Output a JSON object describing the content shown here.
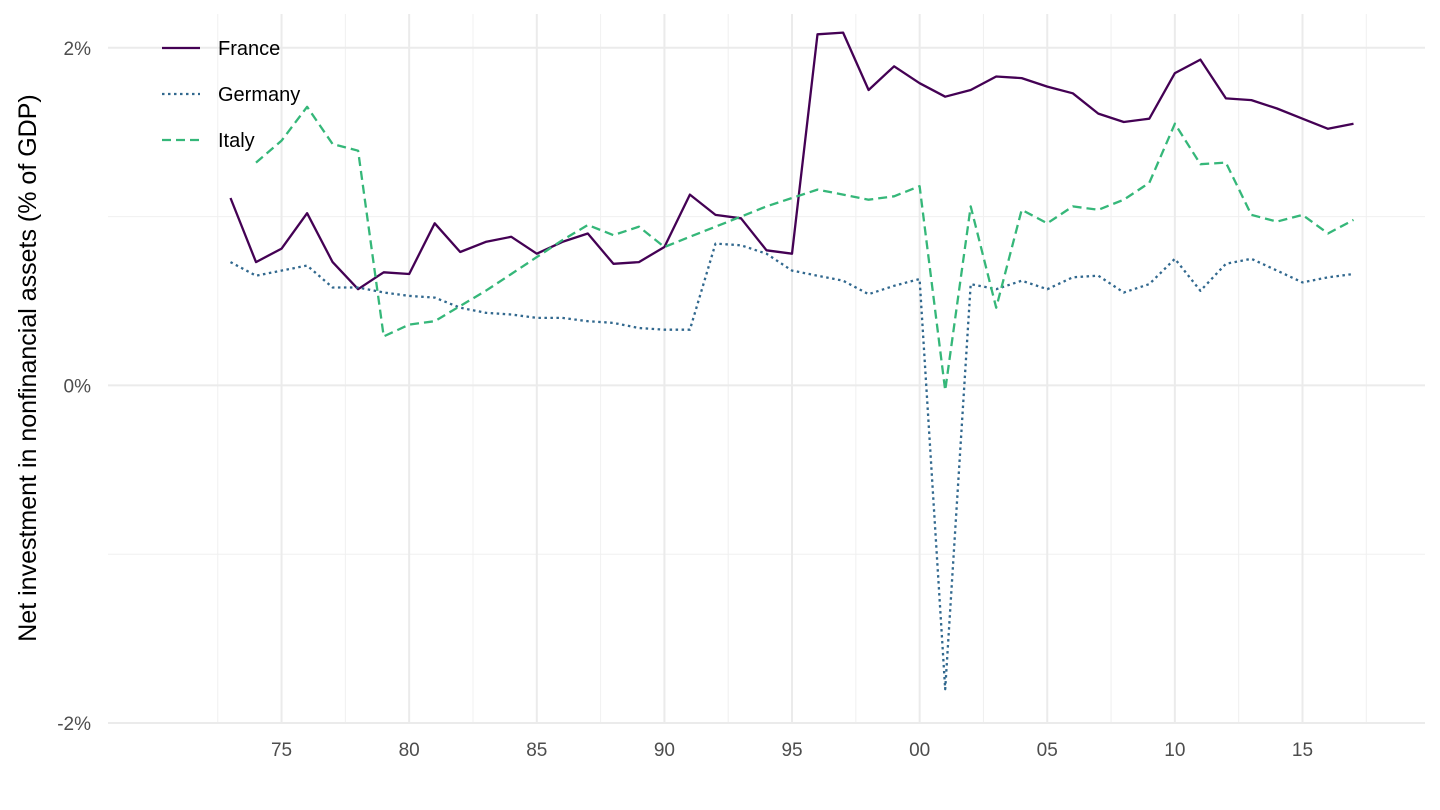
{
  "chart_data": {
    "type": "line",
    "ylabel": "Net investment in nonfinancial assets (% of GDP)",
    "xlabel": "",
    "xlim": [
      1968.2,
      2019.8
    ],
    "ylim": [
      -2,
      2.2
    ],
    "x_ticks": [
      1975,
      1980,
      1985,
      1990,
      1995,
      2000,
      2005,
      2010,
      2015
    ],
    "x_tick_labels": [
      "75",
      "80",
      "85",
      "90",
      "95",
      "00",
      "05",
      "10",
      "15"
    ],
    "y_ticks": [
      -2,
      0,
      2
    ],
    "y_tick_labels": [
      "-2%",
      "0%",
      "2%"
    ],
    "grid": true,
    "legend_position": "top-left",
    "series": [
      {
        "name": "France",
        "color": "#440154",
        "dash": "solid",
        "x": [
          1973,
          1974,
          1975,
          1976,
          1977,
          1978,
          1979,
          1980,
          1981,
          1982,
          1983,
          1984,
          1985,
          1986,
          1987,
          1988,
          1989,
          1990,
          1991,
          1992,
          1993,
          1994,
          1995,
          1996,
          1997,
          1998,
          1999,
          2000,
          2001,
          2002,
          2003,
          2004,
          2005,
          2006,
          2007,
          2008,
          2009,
          2010,
          2011,
          2012,
          2013,
          2014,
          2015,
          2016,
          2017
        ],
        "values": [
          1.11,
          0.73,
          0.81,
          1.02,
          0.73,
          0.57,
          0.67,
          0.66,
          0.96,
          0.79,
          0.85,
          0.88,
          0.78,
          0.85,
          0.9,
          0.72,
          0.73,
          0.82,
          1.13,
          1.01,
          0.99,
          0.8,
          0.78,
          2.08,
          2.09,
          1.75,
          1.89,
          1.79,
          1.71,
          1.75,
          1.83,
          1.82,
          1.77,
          1.73,
          1.61,
          1.56,
          1.58,
          1.85,
          1.93,
          1.7,
          1.69,
          1.64,
          1.58,
          1.52,
          1.55
        ]
      },
      {
        "name": "Germany",
        "color": "#31688E",
        "dash": "dotted",
        "x": [
          1973,
          1974,
          1975,
          1976,
          1977,
          1978,
          1979,
          1980,
          1981,
          1982,
          1983,
          1984,
          1985,
          1986,
          1987,
          1988,
          1989,
          1990,
          1991,
          1992,
          1993,
          1994,
          1995,
          1996,
          1997,
          1998,
          1999,
          2000,
          2001,
          2002,
          2003,
          2004,
          2005,
          2006,
          2007,
          2008,
          2009,
          2010,
          2011,
          2012,
          2013,
          2014,
          2015,
          2016,
          2017
        ],
        "values": [
          0.73,
          0.65,
          0.68,
          0.71,
          0.58,
          0.58,
          0.55,
          0.53,
          0.52,
          0.46,
          0.43,
          0.42,
          0.4,
          0.4,
          0.38,
          0.37,
          0.34,
          0.33,
          0.33,
          0.84,
          0.83,
          0.78,
          0.68,
          0.65,
          0.62,
          0.54,
          0.59,
          0.63,
          -1.8,
          0.6,
          0.57,
          0.62,
          0.57,
          0.64,
          0.65,
          0.55,
          0.6,
          0.75,
          0.56,
          0.72,
          0.75,
          0.68,
          0.61,
          0.64,
          0.66
        ]
      },
      {
        "name": "Italy",
        "color": "#35B779",
        "dash": "dashed",
        "x": [
          1974,
          1975,
          1976,
          1977,
          1978,
          1979,
          1980,
          1981,
          1982,
          1983,
          1984,
          1985,
          1986,
          1987,
          1988,
          1989,
          1990,
          1991,
          1992,
          1993,
          1994,
          1995,
          1996,
          1997,
          1998,
          1999,
          2000,
          2001,
          2002,
          2003,
          2004,
          2005,
          2006,
          2007,
          2008,
          2009,
          2010,
          2011,
          2012,
          2013,
          2014,
          2015,
          2016,
          2017
        ],
        "values": [
          1.32,
          1.45,
          1.65,
          1.43,
          1.39,
          0.29,
          0.36,
          0.38,
          0.47,
          0.56,
          0.66,
          0.76,
          0.86,
          0.95,
          0.89,
          0.94,
          0.82,
          0.88,
          0.94,
          1.0,
          1.06,
          1.11,
          1.16,
          1.13,
          1.1,
          1.12,
          1.18,
          -0.03,
          1.06,
          0.46,
          1.04,
          0.96,
          1.06,
          1.04,
          1.1,
          1.2,
          1.55,
          1.31,
          1.32,
          1.01,
          0.97,
          1.01,
          0.9,
          0.98
        ]
      }
    ]
  }
}
